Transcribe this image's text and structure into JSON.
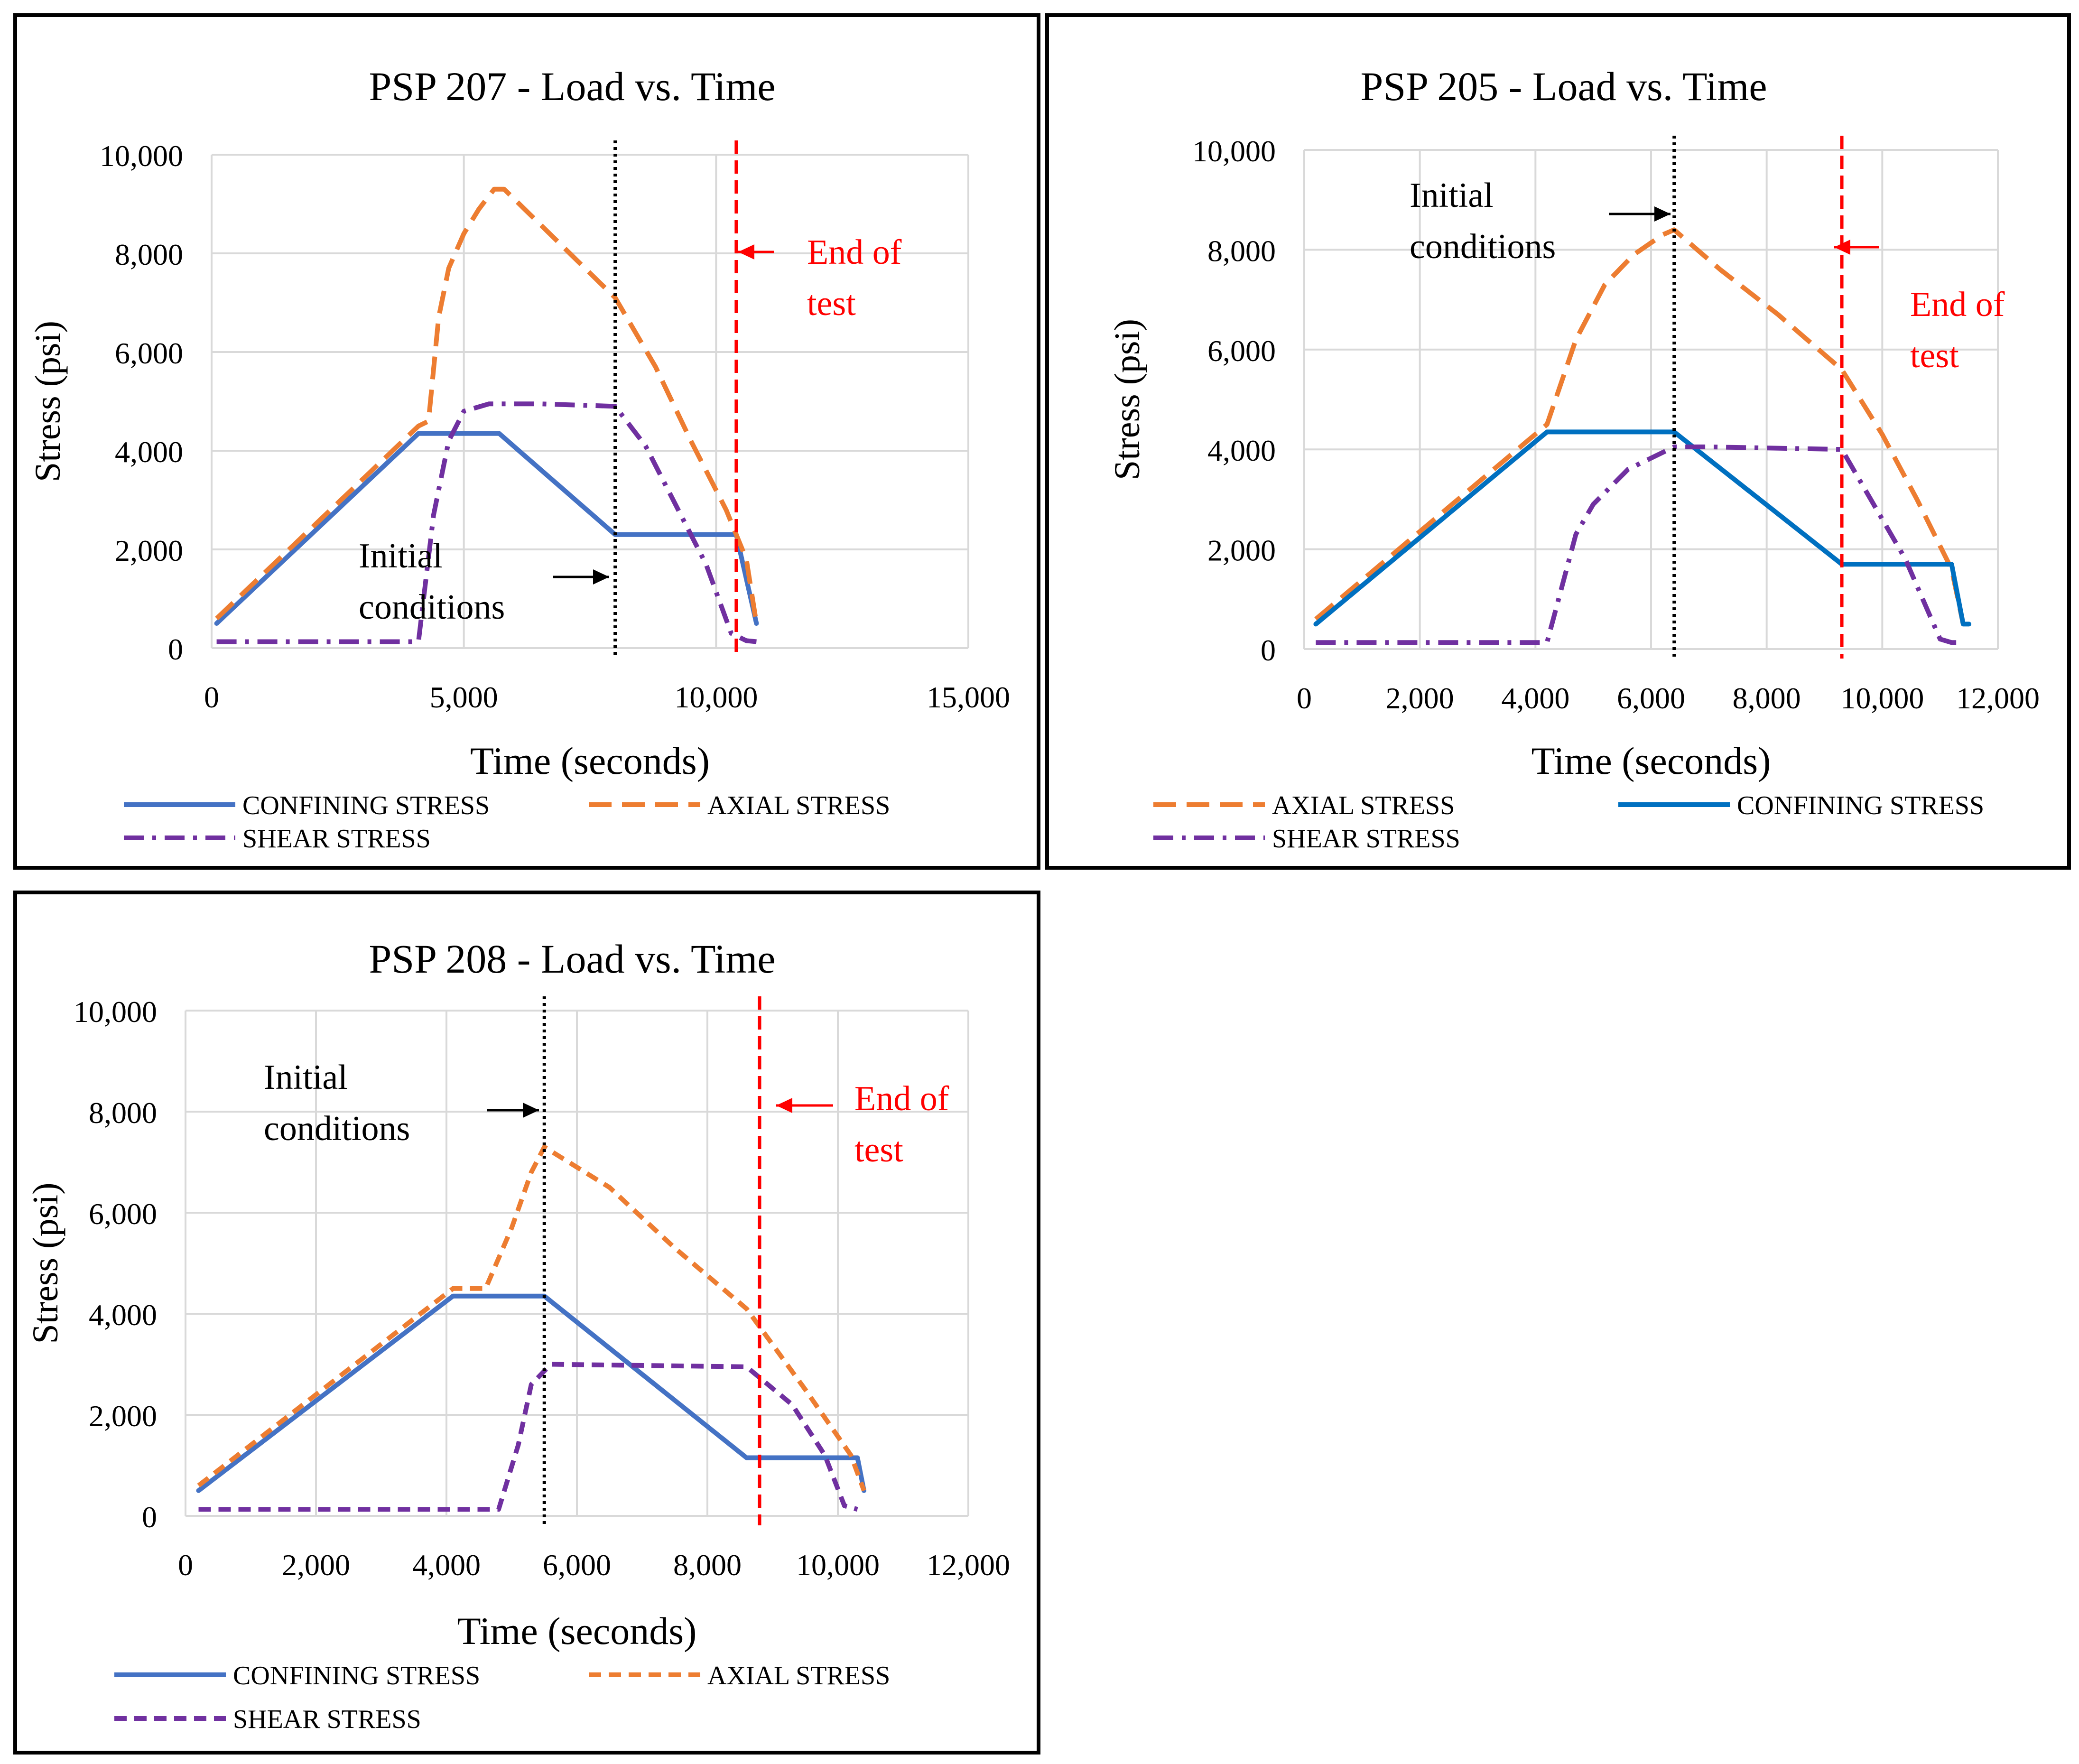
{
  "chart_data": [
    {
      "type": "line",
      "title": "PSP 207 - Load vs. Time",
      "xlabel": "Time (seconds)",
      "ylabel": "Stress (psi)",
      "xlim": [
        0,
        15000
      ],
      "ylim": [
        0,
        10000
      ],
      "xticks": [
        0,
        5000,
        10000,
        15000
      ],
      "xtick_labels": [
        "0",
        "5,000",
        "10,000",
        "15,000"
      ],
      "yticks": [
        0,
        2000,
        4000,
        6000,
        8000,
        10000
      ],
      "ytick_labels": [
        "0",
        "2,000",
        "4,000",
        "6,000",
        "8,000",
        "10,000"
      ],
      "grid": true,
      "legend": [
        {
          "name": "CONFINING STRESS",
          "style": "solid",
          "color": "#4472C4"
        },
        {
          "name": "AXIAL STRESS",
          "style": "dash",
          "color": "#ED7D31"
        },
        {
          "name": "SHEAR STRESS",
          "style": "dashdot",
          "color": "#7030A0"
        }
      ],
      "series": [
        {
          "name": "CONFINING STRESS",
          "color": "#4472C4",
          "style": "solid",
          "x": [
            100,
            4100,
            5700,
            8000,
            10400,
            10800
          ],
          "y": [
            500,
            4350,
            4350,
            2300,
            2300,
            500
          ]
        },
        {
          "name": "AXIAL STRESS",
          "color": "#ED7D31",
          "style": "dash",
          "x": [
            100,
            4100,
            4300,
            4500,
            4700,
            5000,
            5300,
            5600,
            5800,
            6500,
            7300,
            8000,
            8800,
            9500,
            10200,
            10600,
            10800
          ],
          "y": [
            600,
            4500,
            4600,
            6700,
            7700,
            8400,
            8900,
            9300,
            9300,
            8600,
            7800,
            7100,
            5700,
            4200,
            2800,
            1800,
            500
          ]
        },
        {
          "name": "SHEAR STRESS",
          "color": "#7030A0",
          "style": "dashdot",
          "x": [
            100,
            4100,
            4400,
            4700,
            5000,
            5500,
            6500,
            8000,
            8600,
            9200,
            9800,
            10300,
            10600,
            10800
          ],
          "y": [
            130,
            130,
            2700,
            4200,
            4800,
            4950,
            4950,
            4900,
            4100,
            2900,
            1700,
            300,
            150,
            130
          ]
        }
      ],
      "markers": [
        {
          "x": 8000,
          "color": "#000000",
          "style": "dotted"
        },
        {
          "x": 10400,
          "color": "#FF0000",
          "style": "dashed"
        }
      ],
      "annotations": [
        {
          "text": [
            "Initial",
            "conditions"
          ],
          "color": "#000000"
        },
        {
          "text": [
            "End of",
            "test"
          ],
          "color": "#FF0000"
        }
      ]
    },
    {
      "type": "line",
      "title": "PSP 205 - Load vs. Time",
      "xlabel": "Time (seconds)",
      "ylabel": "Stress (psi)",
      "xlim": [
        0,
        12000
      ],
      "ylim": [
        0,
        10000
      ],
      "xticks": [
        0,
        2000,
        4000,
        6000,
        8000,
        10000,
        12000
      ],
      "xtick_labels": [
        "0",
        "2,000",
        "4,000",
        "6,000",
        "8,000",
        "10,000",
        "12,000"
      ],
      "yticks": [
        0,
        2000,
        4000,
        6000,
        8000,
        10000
      ],
      "ytick_labels": [
        "0",
        "2,000",
        "4,000",
        "6,000",
        "8,000",
        "10,000"
      ],
      "grid": true,
      "legend": [
        {
          "name": "AXIAL STRESS",
          "style": "dash",
          "color": "#ED7D31"
        },
        {
          "name": "CONFINING STRESS",
          "style": "solid",
          "color": "#0070C0"
        },
        {
          "name": "SHEAR STRESS",
          "style": "dashdot",
          "color": "#7030A0"
        }
      ],
      "series": [
        {
          "name": "AXIAL STRESS",
          "color": "#ED7D31",
          "style": "dash",
          "x": [
            200,
            4200,
            4700,
            5200,
            5700,
            6200,
            6400,
            7200,
            8200,
            9300,
            10000,
            10600,
            11200,
            11400
          ],
          "y": [
            600,
            4500,
            6200,
            7300,
            7900,
            8300,
            8400,
            7600,
            6700,
            5600,
            4300,
            3000,
            1600,
            500
          ]
        },
        {
          "name": "CONFINING STRESS",
          "color": "#0070C0",
          "style": "solid",
          "x": [
            200,
            4200,
            6400,
            9300,
            11200,
            11400,
            11500
          ],
          "y": [
            500,
            4350,
            4350,
            1700,
            1700,
            500,
            500
          ]
        },
        {
          "name": "SHEAR STRESS",
          "color": "#7030A0",
          "style": "dashdot",
          "x": [
            200,
            4200,
            4700,
            5000,
            5600,
            6400,
            7000,
            9300,
            9800,
            10400,
            11000,
            11200,
            11400
          ],
          "y": [
            130,
            130,
            2300,
            2900,
            3600,
            4050,
            4050,
            4000,
            3000,
            1800,
            200,
            130,
            130
          ]
        }
      ],
      "markers": [
        {
          "x": 6400,
          "color": "#000000",
          "style": "dotted"
        },
        {
          "x": 9300,
          "color": "#FF0000",
          "style": "dashed"
        }
      ],
      "annotations": [
        {
          "text": [
            "Initial",
            "conditions"
          ],
          "color": "#000000"
        },
        {
          "text": [
            "End of",
            "test"
          ],
          "color": "#FF0000"
        }
      ]
    },
    {
      "type": "line",
      "title": "PSP 208 - Load vs. Time",
      "xlabel": "Time (seconds)",
      "ylabel": "Stress (psi)",
      "xlim": [
        0,
        12000
      ],
      "ylim": [
        0,
        10000
      ],
      "xticks": [
        0,
        2000,
        4000,
        6000,
        8000,
        10000,
        12000
      ],
      "xtick_labels": [
        "0",
        "2,000",
        "4,000",
        "6,000",
        "8,000",
        "10,000",
        "12,000"
      ],
      "yticks": [
        0,
        2000,
        4000,
        6000,
        8000,
        10000
      ],
      "ytick_labels": [
        "0",
        "2,000",
        "4,000",
        "6,000",
        "8,000",
        "10,000"
      ],
      "grid": true,
      "legend": [
        {
          "name": "CONFINING STRESS",
          "style": "solid",
          "color": "#4472C4"
        },
        {
          "name": "AXIAL STRESS",
          "style": "shortdash",
          "color": "#ED7D31"
        },
        {
          "name": "SHEAR STRESS",
          "style": "shortdash",
          "color": "#7030A0"
        }
      ],
      "series": [
        {
          "name": "CONFINING STRESS",
          "color": "#4472C4",
          "style": "solid",
          "x": [
            200,
            4100,
            5500,
            8600,
            10300,
            10400
          ],
          "y": [
            500,
            4350,
            4350,
            1150,
            1150,
            500
          ]
        },
        {
          "name": "AXIAL STRESS",
          "color": "#ED7D31",
          "style": "shortdash",
          "x": [
            200,
            4100,
            4600,
            5000,
            5300,
            5500,
            6500,
            7500,
            8600,
            9500,
            10200,
            10400
          ],
          "y": [
            600,
            4500,
            4500,
            5700,
            6800,
            7300,
            6500,
            5300,
            4100,
            2500,
            1200,
            500
          ]
        },
        {
          "name": "SHEAR STRESS",
          "color": "#7030A0",
          "style": "shortdash",
          "x": [
            200,
            4800,
            5100,
            5300,
            5600,
            8600,
            9300,
            9800,
            10100,
            10300
          ],
          "y": [
            130,
            130,
            1400,
            2600,
            3000,
            2950,
            2200,
            1200,
            200,
            130
          ]
        }
      ],
      "markers": [
        {
          "x": 5500,
          "color": "#000000",
          "style": "dotted"
        },
        {
          "x": 8800,
          "color": "#FF0000",
          "style": "dashed"
        }
      ],
      "annotations": [
        {
          "text": [
            "Initial",
            "conditions"
          ],
          "color": "#000000"
        },
        {
          "text": [
            "End of",
            "test"
          ],
          "color": "#FF0000"
        }
      ]
    }
  ]
}
